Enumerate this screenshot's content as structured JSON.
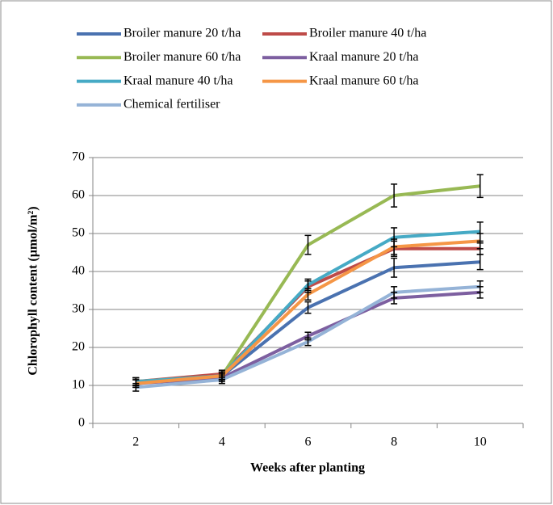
{
  "chart_data": {
    "type": "line",
    "x_label": "Weeks after planting",
    "y_label": "Chlorophyll content (µmol/m²)",
    "categories": [
      "2",
      "4",
      "6",
      "8",
      "10"
    ],
    "ylim": [
      0,
      70
    ],
    "yticks": [
      0,
      10,
      20,
      30,
      40,
      50,
      60,
      70
    ],
    "grid": true,
    "legend": "top",
    "series": [
      {
        "name": "Broiler manure 20 t/ha",
        "color": "#4a72b0",
        "values": [
          11,
          12.5,
          30.5,
          41,
          42.5
        ],
        "errors": [
          1,
          1,
          1.5,
          2.5,
          2
        ]
      },
      {
        "name": "Broiler manure 40 t/ha",
        "color": "#be4b48",
        "values": [
          11,
          13,
          36,
          46,
          46
        ],
        "errors": [
          1,
          1,
          1.5,
          2,
          1.5
        ]
      },
      {
        "name": "Broiler manure 60 t/ha",
        "color": "#98b954",
        "values": [
          11,
          12.5,
          47,
          60,
          62.5
        ],
        "errors": [
          1,
          1,
          2.5,
          3,
          3
        ]
      },
      {
        "name": "Kraal manure 20 t/ha",
        "color": "#7d5fa0",
        "values": [
          10.5,
          12,
          23,
          33,
          34.5
        ],
        "errors": [
          1,
          1,
          1,
          1.5,
          1.5
        ]
      },
      {
        "name": "Kraal manure 40 t/ha",
        "color": "#46aac5",
        "values": [
          11,
          12.5,
          36.5,
          49,
          50.5
        ],
        "errors": [
          1,
          1,
          1.5,
          2.5,
          2.5
        ]
      },
      {
        "name": "Kraal manure 60 t/ha",
        "color": "#f59646",
        "values": [
          10.5,
          12.5,
          34,
          46.5,
          48
        ],
        "errors": [
          1,
          1,
          1.5,
          2,
          2
        ]
      },
      {
        "name": "Chemical fertiliser",
        "color": "#95b3d7",
        "values": [
          9.5,
          11.5,
          21.5,
          34.5,
          36
        ],
        "errors": [
          1,
          1,
          1,
          1.5,
          1.5
        ]
      }
    ]
  }
}
